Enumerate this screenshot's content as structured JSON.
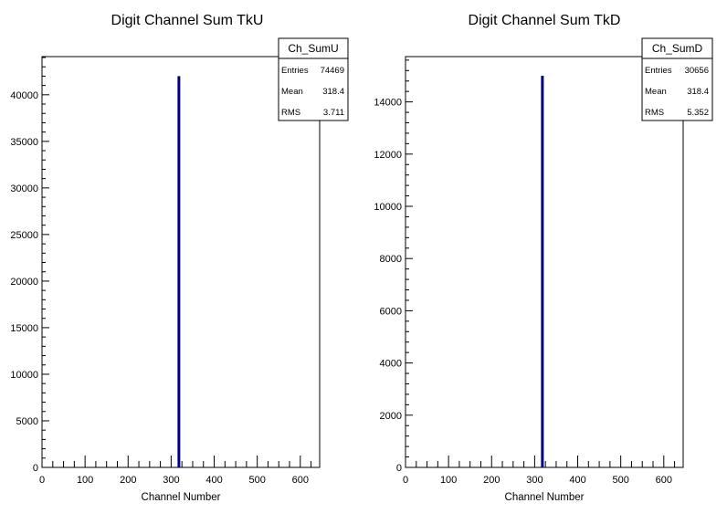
{
  "chart_data": [
    {
      "type": "bar",
      "title": "Digit Channel Sum TkU",
      "xlabel": "Channel Number",
      "ylabel": "",
      "xlim": [
        0,
        645
      ],
      "ylim": [
        0,
        44000
      ],
      "x_ticks": [
        0,
        100,
        200,
        300,
        400,
        500,
        600
      ],
      "y_ticks": [
        0,
        5000,
        10000,
        15000,
        20000,
        25000,
        30000,
        35000,
        40000
      ],
      "bars": [
        {
          "x": 318,
          "value": 42000
        }
      ],
      "bar_color": "#000080",
      "legend": "top-right",
      "stats": {
        "name": "Ch_SumU",
        "rows": [
          {
            "label": "Entries",
            "value": "74469"
          },
          {
            "label": "Mean",
            "value": "318.4"
          },
          {
            "label": "RMS",
            "value": "3.711"
          }
        ]
      }
    },
    {
      "type": "bar",
      "title": "Digit Channel Sum TkD",
      "xlabel": "Channel Number",
      "ylabel": "",
      "xlim": [
        0,
        645
      ],
      "ylim": [
        0,
        15700
      ],
      "x_ticks": [
        0,
        100,
        200,
        300,
        400,
        500,
        600
      ],
      "y_ticks": [
        0,
        2000,
        4000,
        6000,
        8000,
        10000,
        12000,
        14000
      ],
      "bars": [
        {
          "x": 318,
          "value": 15000
        }
      ],
      "bar_color": "#000080",
      "legend": "top-right",
      "stats": {
        "name": "Ch_SumD",
        "rows": [
          {
            "label": "Entries",
            "value": "30656"
          },
          {
            "label": "Mean",
            "value": "318.4"
          },
          {
            "label": "RMS",
            "value": "5.352"
          }
        ]
      }
    }
  ]
}
